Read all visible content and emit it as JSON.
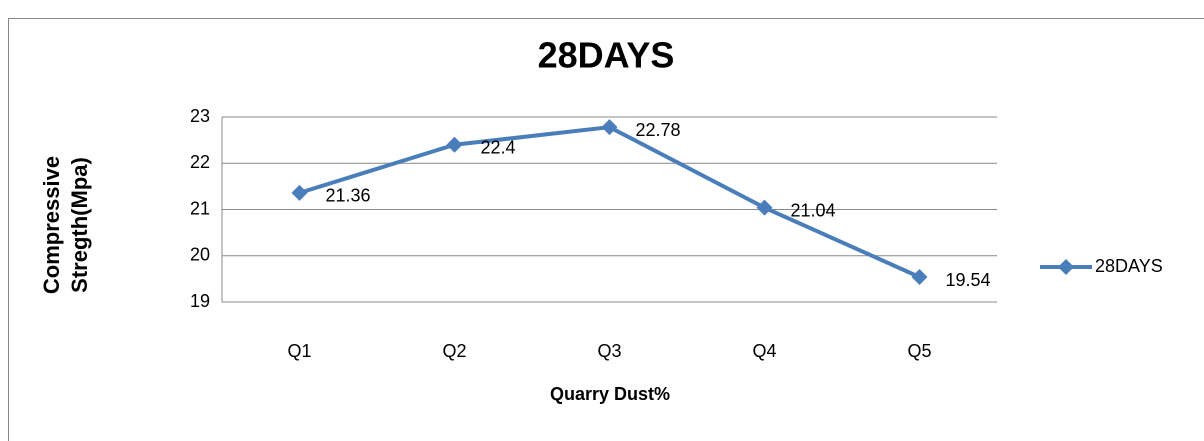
{
  "chart_data": {
    "type": "line",
    "title": "28DAYS",
    "x_label": "Quarry Dust%",
    "y_label": "Compressive Stregth(Mpa)",
    "categories": [
      "Q1",
      "Q2",
      "Q3",
      "Q4",
      "Q5"
    ],
    "series": [
      {
        "name": "28DAYS",
        "color": "#4a7ebb",
        "values": [
          21.36,
          22.4,
          22.78,
          21.04,
          19.54
        ]
      }
    ],
    "ylim": [
      19,
      23
    ],
    "yticks": [
      19,
      20,
      21,
      22,
      23
    ],
    "grid": true,
    "legend": "right"
  }
}
